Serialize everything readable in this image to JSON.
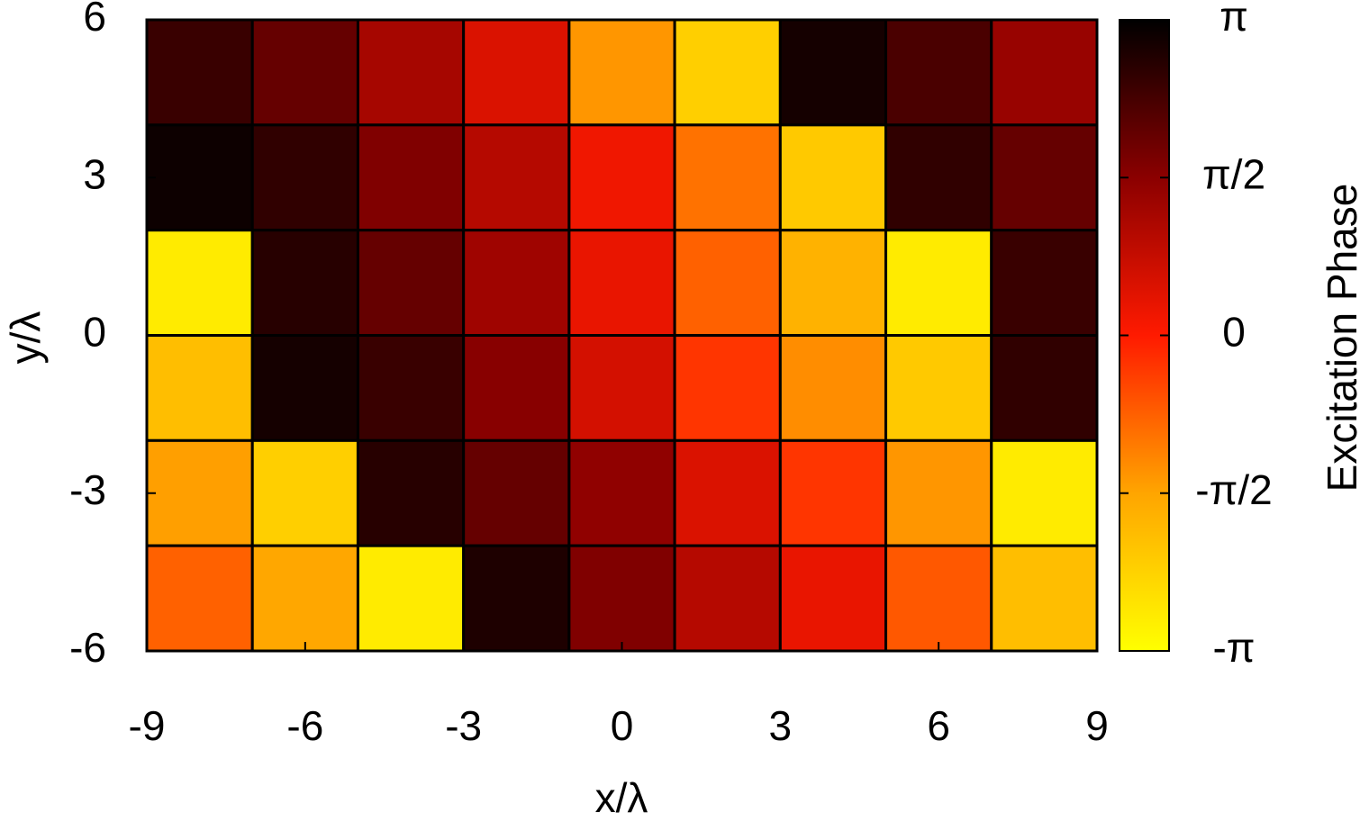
{
  "chart_data": {
    "type": "heatmap",
    "x": [
      -8,
      -6,
      -4,
      -2,
      0,
      2,
      4,
      6,
      8
    ],
    "y": [
      5,
      3,
      1,
      -1,
      -3,
      -5
    ],
    "z": [
      [
        2.5,
        2.0,
        1.2,
        0.5,
        -1.4,
        -2.3,
        2.9,
        2.3,
        1.4
      ],
      [
        3.0,
        2.6,
        1.7,
        1.0,
        0.2,
        -1.0,
        -2.2,
        2.6,
        2.0
      ],
      [
        -2.8,
        2.7,
        2.0,
        1.3,
        0.3,
        -0.8,
        -1.8,
        -2.8,
        2.5
      ],
      [
        -2.0,
        2.9,
        2.5,
        1.6,
        0.6,
        -0.3,
        -1.3,
        -2.2,
        2.6
      ],
      [
        -1.5,
        -2.3,
        2.7,
        2.0,
        1.5,
        0.5,
        -0.3,
        -1.4,
        -2.8
      ],
      [
        -0.8,
        -1.6,
        -2.8,
        2.8,
        1.7,
        1.0,
        0.3,
        -0.7,
        -2.0
      ]
    ],
    "xlabel": "x/λ",
    "ylabel": "y/λ",
    "zlabel": "Excitation Phase",
    "xlim": [
      -9,
      9
    ],
    "ylim": [
      -6,
      6
    ],
    "xticks": [
      -9,
      -6,
      -3,
      0,
      3,
      6,
      9
    ],
    "yticks": [
      -6,
      -3,
      0,
      3,
      6
    ],
    "zlim": [
      -3.14159,
      3.14159
    ],
    "zticks": [
      {
        "value": -3.14159,
        "label": "-π"
      },
      {
        "value": -1.5708,
        "label": "-π/2"
      },
      {
        "value": 0,
        "label": "0"
      },
      {
        "value": 1.5708,
        "label": "π/2"
      },
      {
        "value": 3.14159,
        "label": "π"
      }
    ],
    "colormap": [
      "#ffff00",
      "#ffa500",
      "#ff1a00",
      "#8b0000",
      "#000000"
    ]
  }
}
